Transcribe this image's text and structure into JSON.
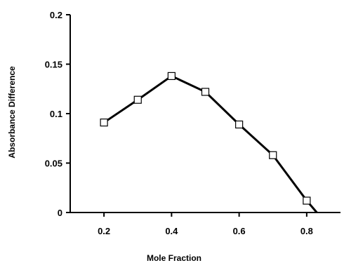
{
  "chart_data": {
    "type": "line",
    "xlabel": "Mole Fraction",
    "ylabel": "Absorbance Difference",
    "xlim": [
      0.1,
      0.9
    ],
    "ylim": [
      0,
      0.2
    ],
    "xticks": [
      0.2,
      0.4,
      0.6,
      0.8
    ],
    "xtick_labels": [
      "0.2",
      "0.4",
      "0.6",
      "0.8"
    ],
    "yticks": [
      0,
      0.05,
      0.1,
      0.15,
      0.2
    ],
    "ytick_labels": [
      "0",
      "0.05",
      "0.1",
      "0.15",
      "0.2"
    ],
    "grid": false,
    "marker": "open-square",
    "series": [
      {
        "x": [
          0.2,
          0.3,
          0.4,
          0.5,
          0.6,
          0.7,
          0.8,
          0.83
        ],
        "y": [
          0.091,
          0.114,
          0.138,
          0.122,
          0.089,
          0.058,
          0.012,
          0.0
        ],
        "markers": [
          true,
          true,
          true,
          true,
          true,
          true,
          true,
          false
        ]
      }
    ],
    "line_color": "#000000"
  }
}
